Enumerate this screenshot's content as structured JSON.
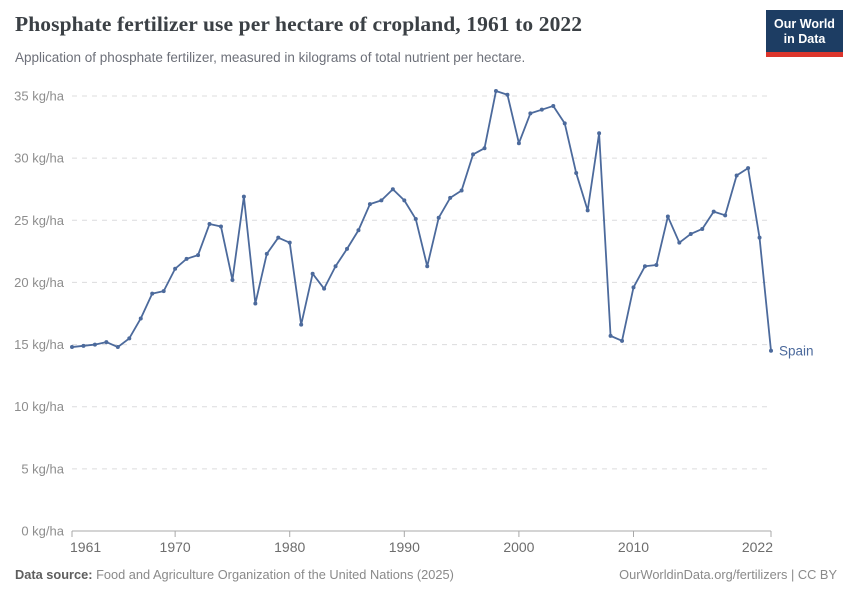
{
  "header": {
    "title": "Phosphate fertilizer use per hectare of cropland, 1961 to 2022",
    "subtitle": "Application of phosphate fertilizer, measured in kilograms of total nutrient per hectare."
  },
  "logo": {
    "line1": "Our World",
    "line2": "in Data",
    "bg_color": "#1d3d63",
    "accent_color": "#dc352c"
  },
  "chart_data": {
    "type": "line",
    "title": "Phosphate fertilizer use per hectare of cropland, 1961 to 2022",
    "xlabel": "",
    "ylabel": "kg/ha",
    "xlim": [
      1961,
      2022
    ],
    "ylim": [
      0,
      35
    ],
    "x_ticks": [
      1961,
      1970,
      1980,
      1990,
      2000,
      2010,
      2022
    ],
    "y_ticks": [
      0,
      5,
      10,
      15,
      20,
      25,
      30,
      35
    ],
    "y_tick_suffix": " kg/ha",
    "grid": "horizontal-dashed",
    "legend_position": "end-of-line-label",
    "line_color": "#4c6a9c",
    "gridline_color": "#dcdcdd",
    "axis_color": "#a8a8a8",
    "series": [
      {
        "name": "Spain",
        "x": [
          1961,
          1962,
          1963,
          1964,
          1965,
          1966,
          1967,
          1968,
          1969,
          1970,
          1971,
          1972,
          1973,
          1974,
          1975,
          1976,
          1977,
          1978,
          1979,
          1980,
          1981,
          1982,
          1983,
          1984,
          1985,
          1986,
          1987,
          1988,
          1989,
          1990,
          1991,
          1992,
          1993,
          1994,
          1995,
          1996,
          1997,
          1998,
          1999,
          2000,
          2001,
          2002,
          2003,
          2004,
          2005,
          2006,
          2007,
          2008,
          2009,
          2010,
          2011,
          2012,
          2013,
          2014,
          2015,
          2016,
          2017,
          2018,
          2019,
          2020,
          2021,
          2022
        ],
        "values": [
          14.8,
          14.9,
          15.0,
          15.2,
          14.8,
          15.5,
          17.1,
          19.1,
          19.3,
          21.1,
          21.9,
          22.2,
          24.7,
          24.5,
          20.2,
          26.9,
          18.3,
          22.3,
          23.6,
          23.2,
          16.6,
          20.7,
          19.5,
          21.3,
          22.7,
          24.2,
          26.3,
          26.6,
          27.5,
          26.6,
          25.1,
          21.3,
          25.2,
          26.8,
          27.4,
          30.3,
          30.8,
          35.4,
          35.1,
          31.2,
          33.6,
          33.9,
          34.2,
          32.8,
          28.8,
          25.8,
          32.0,
          15.7,
          15.3,
          19.6,
          21.3,
          21.4,
          25.3,
          23.2,
          23.9,
          24.3,
          25.7,
          25.4,
          28.6,
          29.2,
          23.6,
          14.5
        ]
      }
    ]
  },
  "footer": {
    "datasource_label": "Data source:",
    "datasource_text": " Food and Agriculture Organization of the United Nations (2025)",
    "credit": "OurWorldinData.org/fertilizers | CC BY"
  }
}
